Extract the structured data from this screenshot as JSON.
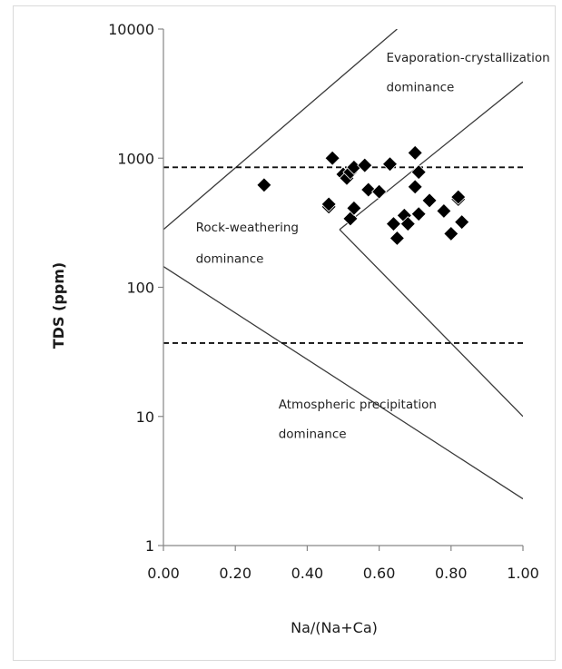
{
  "chart_data": {
    "type": "scatter",
    "title": "",
    "xlabel": "Na/(Na+Ca)",
    "ylabel": "TDS (ppm)",
    "xlim": [
      0.0,
      1.0
    ],
    "ylim": [
      1,
      10000
    ],
    "yscale": "log",
    "grid": false,
    "legend": "none",
    "x_ticks": [
      "0.00",
      "0.20",
      "0.40",
      "0.60",
      "0.80",
      "1.00"
    ],
    "x_tick_values": [
      0.0,
      0.2,
      0.4,
      0.6,
      0.8,
      1.0
    ],
    "y_ticks": [
      "1",
      "10",
      "100",
      "1000",
      "10000"
    ],
    "y_tick_values": [
      1,
      10,
      100,
      1000,
      10000
    ],
    "regions": [
      {
        "key": "evap1",
        "text": "Evaporation-crystallization",
        "x": 0.62,
        "y": 5600
      },
      {
        "key": "evap2",
        "text": "dominance",
        "x": 0.62,
        "y": 3300
      },
      {
        "key": "rock1",
        "text": "Rock-weathering",
        "x": 0.09,
        "y": 270
      },
      {
        "key": "rock2",
        "text": "dominance",
        "x": 0.09,
        "y": 155
      },
      {
        "key": "atm1",
        "text": "Atmospheric precipitation",
        "x": 0.32,
        "y": 11.5
      },
      {
        "key": "atm2",
        "text": "dominance",
        "x": 0.32,
        "y": 6.8
      }
    ],
    "boundary_lines": [
      {
        "name": "upper-left-boundary",
        "points": [
          [
            0.0,
            280
          ],
          [
            0.65,
            10000
          ]
        ]
      },
      {
        "name": "upper-right-boundary",
        "points": [
          [
            0.49,
            280
          ],
          [
            1.0,
            3900
          ]
        ]
      },
      {
        "name": "middle-right-boundary",
        "points": [
          [
            0.49,
            280
          ],
          [
            1.0,
            10
          ]
        ]
      },
      {
        "name": "lower-boundary",
        "points": [
          [
            0.0,
            145
          ],
          [
            1.0,
            2.3
          ]
        ]
      }
    ],
    "dashed_lines": [
      {
        "name": "upper-dashed-line",
        "y": 850
      },
      {
        "name": "lower-dashed-line",
        "y": 37
      }
    ],
    "series": [
      {
        "points": [
          [
            0.28,
            620
          ],
          [
            0.46,
            420
          ],
          [
            0.46,
            440
          ],
          [
            0.47,
            1000
          ],
          [
            0.5,
            750
          ],
          [
            0.51,
            700
          ],
          [
            0.52,
            780
          ],
          [
            0.52,
            340
          ],
          [
            0.53,
            850
          ],
          [
            0.53,
            410
          ],
          [
            0.56,
            880
          ],
          [
            0.57,
            570
          ],
          [
            0.6,
            550
          ],
          [
            0.63,
            900
          ],
          [
            0.64,
            310
          ],
          [
            0.65,
            240
          ],
          [
            0.67,
            360
          ],
          [
            0.68,
            310
          ],
          [
            0.7,
            600
          ],
          [
            0.7,
            1100
          ],
          [
            0.71,
            780
          ],
          [
            0.71,
            370
          ],
          [
            0.74,
            470
          ],
          [
            0.78,
            390
          ],
          [
            0.8,
            260
          ],
          [
            0.82,
            480
          ],
          [
            0.82,
            500
          ],
          [
            0.83,
            320
          ]
        ]
      }
    ]
  }
}
